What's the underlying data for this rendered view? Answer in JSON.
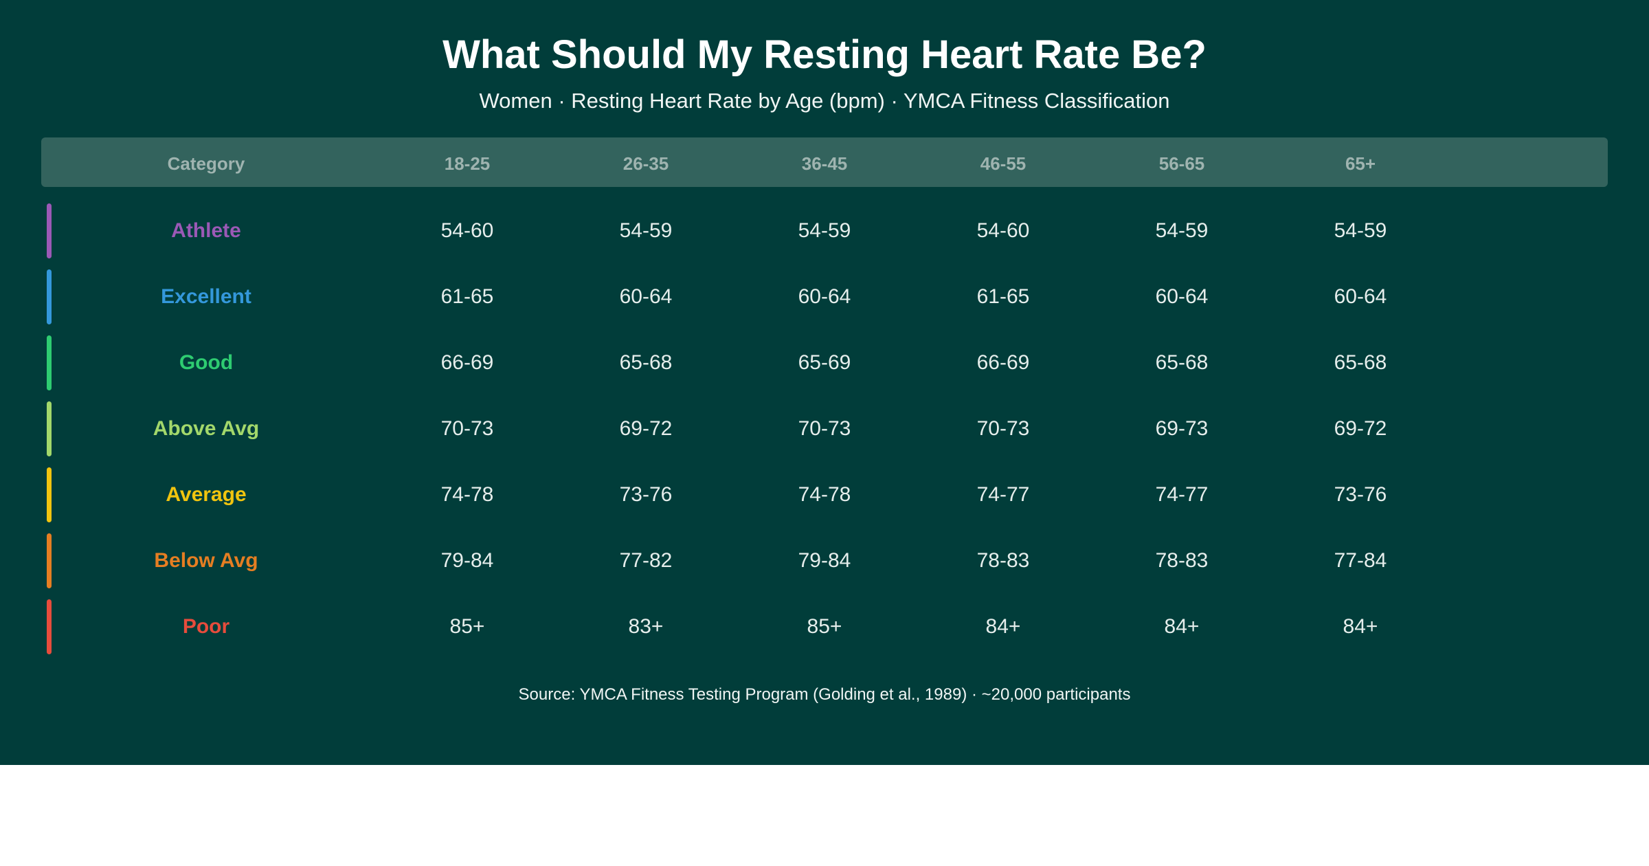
{
  "title": "What Should My Resting Heart Rate Be?",
  "subtitle": "Women · Resting Heart Rate by Age (bpm) · YMCA Fitness Classification",
  "source": "Source: YMCA Fitness Testing Program (Golding et al., 1989) · ~20,000 participants",
  "colors": {
    "background": "#013d3a",
    "header_bar": "#33635d",
    "header_text": "#9fb4b0",
    "value_text": "#e6eeec"
  },
  "chart_data": {
    "type": "table",
    "title": "What Should My Resting Heart Rate Be?",
    "subtitle": "Women · Resting Heart Rate by Age (bpm) · YMCA Fitness Classification",
    "columns": [
      "Category",
      "18-25",
      "26-35",
      "36-45",
      "46-55",
      "56-65",
      "65+"
    ],
    "rows": [
      {
        "category": "Athlete",
        "color": "#9b59b6",
        "values": [
          "54-60",
          "54-59",
          "54-59",
          "54-60",
          "54-59",
          "54-59"
        ]
      },
      {
        "category": "Excellent",
        "color": "#3498db",
        "values": [
          "61-65",
          "60-64",
          "60-64",
          "61-65",
          "60-64",
          "60-64"
        ]
      },
      {
        "category": "Good",
        "color": "#2ecc71",
        "values": [
          "66-69",
          "65-68",
          "65-69",
          "66-69",
          "65-68",
          "65-68"
        ]
      },
      {
        "category": "Above Avg",
        "color": "#a3d86b",
        "values": [
          "70-73",
          "69-72",
          "70-73",
          "70-73",
          "69-73",
          "69-72"
        ]
      },
      {
        "category": "Average",
        "color": "#f1c40f",
        "values": [
          "74-78",
          "73-76",
          "74-78",
          "74-77",
          "74-77",
          "73-76"
        ]
      },
      {
        "category": "Below Avg",
        "color": "#e67e22",
        "values": [
          "79-84",
          "77-82",
          "79-84",
          "78-83",
          "78-83",
          "77-84"
        ]
      },
      {
        "category": "Poor",
        "color": "#e74c3c",
        "values": [
          "85+",
          "83+",
          "85+",
          "84+",
          "84+",
          "84+"
        ]
      }
    ]
  }
}
